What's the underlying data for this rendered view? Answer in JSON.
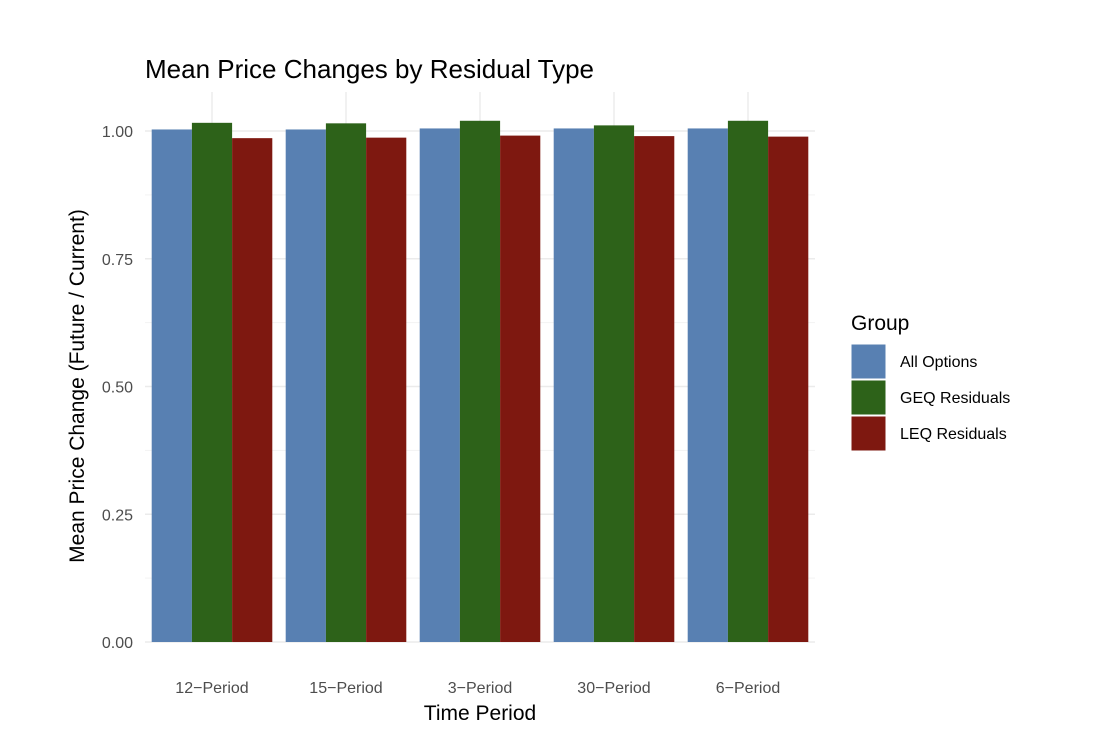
{
  "chart_data": {
    "type": "bar",
    "title": "Mean Price Changes by Residual Type",
    "xlabel": "Time Period",
    "ylabel": "Mean Price Change (Future / Current)",
    "categories": [
      "12−Period",
      "15−Period",
      "3−Period",
      "30−Period",
      "6−Period"
    ],
    "series": [
      {
        "name": "All Options",
        "color": "#5880b2",
        "values": [
          1.003,
          1.003,
          1.005,
          1.005,
          1.005
        ]
      },
      {
        "name": "GEQ Residuals",
        "color": "#2d6219",
        "values": [
          1.016,
          1.015,
          1.02,
          1.011,
          1.02
        ]
      },
      {
        "name": "LEQ Residuals",
        "color": "#7e1810",
        "values": [
          0.986,
          0.987,
          0.991,
          0.99,
          0.989
        ]
      }
    ],
    "ylim": [
      0,
      1.06
    ],
    "yticks": [
      0,
      0.25,
      0.5,
      0.75,
      1.0
    ],
    "ytick_labels": [
      "0.00",
      "0.25",
      "0.50",
      "0.75",
      "1.00"
    ],
    "grid": true,
    "legend": {
      "title": "Group",
      "position": "right"
    }
  }
}
